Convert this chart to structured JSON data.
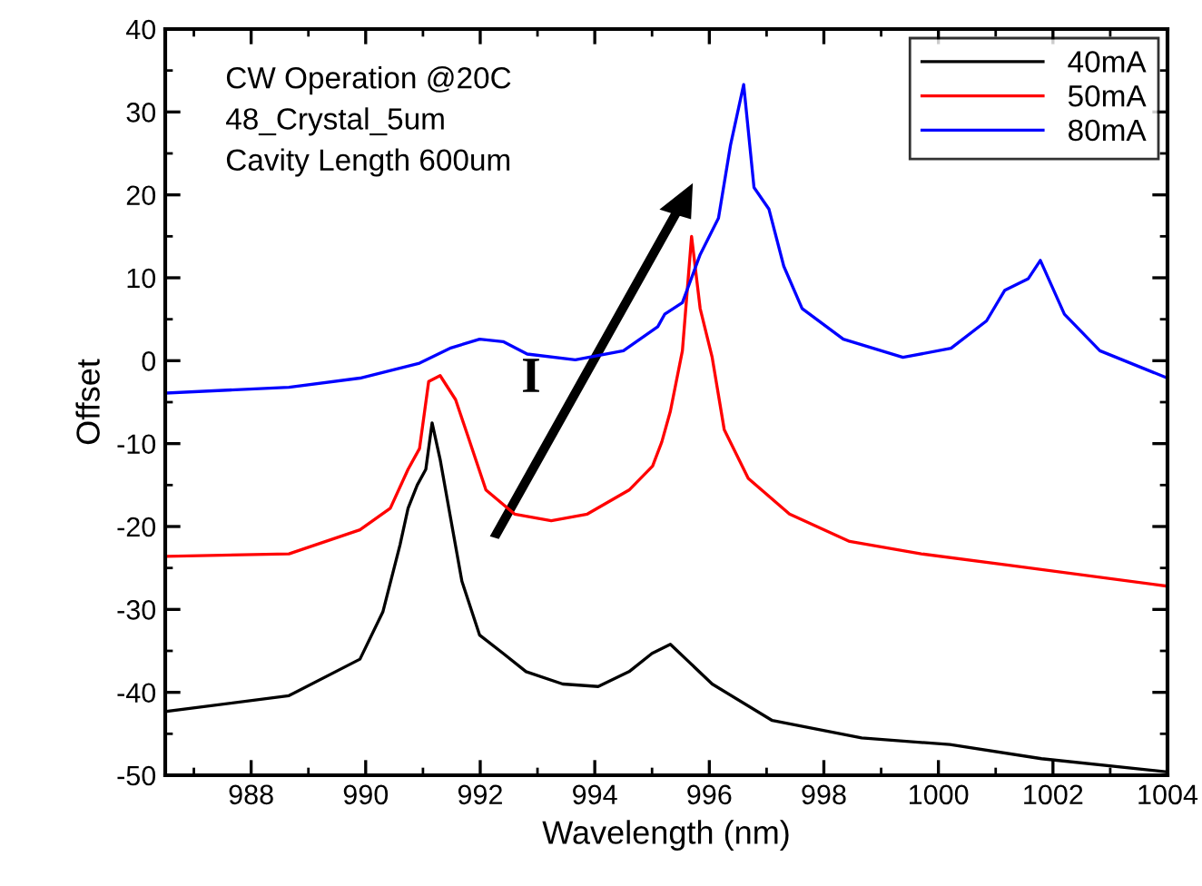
{
  "chart_data": {
    "type": "line",
    "xlabel": "Wavelength (nm)",
    "ylabel": "Offset",
    "xlim": [
      986.5,
      1004
    ],
    "ylim": [
      -50,
      40
    ],
    "xticks": [
      988,
      990,
      992,
      994,
      996,
      998,
      1000,
      1002,
      1004
    ],
    "yticks": [
      -50,
      -40,
      -30,
      -20,
      -10,
      0,
      10,
      20,
      30,
      40
    ],
    "grid": false,
    "legend": "top right",
    "marker": "none",
    "line_style": "solid",
    "annotations": [
      "CW Operation @20C",
      "48_Crystal_5um",
      "Cavity Length 600um",
      "I"
    ],
    "series": [
      {
        "name": "40mA",
        "color": "#000000",
        "x": [
          986.52,
          988.66,
          989.9,
          990.3,
          990.6,
          990.74,
          990.9,
          991.05,
          991.16,
          991.3,
          991.47,
          991.68,
          991.99,
          992.4,
          992.8,
          993.44,
          994.06,
          994.6,
          995.0,
          995.32,
          996.05,
          997.1,
          998.66,
          1000.2,
          1001.8,
          1004.0
        ],
        "values": [
          -42.3,
          -40.4,
          -36.0,
          -30.3,
          -22.2,
          -17.8,
          -15.0,
          -13.1,
          -7.5,
          -11.9,
          -18.5,
          -26.6,
          -33.1,
          -35.3,
          -37.5,
          -39.0,
          -39.3,
          -37.5,
          -35.3,
          -34.2,
          -39.0,
          -43.4,
          -45.5,
          -46.3,
          -48.0,
          -49.6
        ]
      },
      {
        "name": "50mA",
        "color": "#ff0000",
        "x": [
          986.52,
          988.66,
          989.9,
          990.43,
          990.74,
          990.94,
          991.1,
          991.3,
          991.57,
          991.78,
          992.1,
          992.6,
          993.24,
          993.87,
          994.6,
          995.01,
          995.17,
          995.32,
          995.53,
          995.69,
          995.84,
          996.05,
          996.26,
          996.68,
          997.4,
          998.45,
          999.7,
          1001.26,
          1004.0
        ],
        "values": [
          -23.6,
          -23.3,
          -20.4,
          -17.8,
          -13.1,
          -10.6,
          -2.5,
          -1.8,
          -4.7,
          -9.0,
          -15.6,
          -18.5,
          -19.3,
          -18.5,
          -15.6,
          -12.7,
          -9.8,
          -6.1,
          1.2,
          15.0,
          6.3,
          0.4,
          -8.3,
          -14.2,
          -18.5,
          -21.8,
          -23.3,
          -24.7,
          -27.2
        ]
      },
      {
        "name": "80mA",
        "color": "#0000ff",
        "x": [
          986.52,
          988.66,
          989.9,
          990.94,
          991.47,
          991.99,
          992.4,
          992.82,
          993.66,
          994.5,
          995.1,
          995.22,
          995.53,
          995.84,
          996.16,
          996.37,
          996.6,
          996.78,
          997.04,
          997.3,
          997.62,
          998.34,
          999.38,
          1000.22,
          1000.84,
          1001.16,
          1001.57,
          1001.78,
          1002.2,
          1002.82,
          1004.0
        ],
        "values": [
          -3.9,
          -3.2,
          -2.1,
          -0.3,
          1.5,
          2.6,
          2.3,
          0.8,
          0.1,
          1.2,
          4.1,
          5.6,
          7.0,
          12.8,
          17.2,
          26.0,
          33.3,
          20.9,
          18.3,
          11.4,
          6.3,
          2.6,
          0.4,
          1.5,
          4.8,
          8.5,
          9.9,
          12.1,
          5.6,
          1.2,
          -2.1
        ]
      }
    ]
  }
}
